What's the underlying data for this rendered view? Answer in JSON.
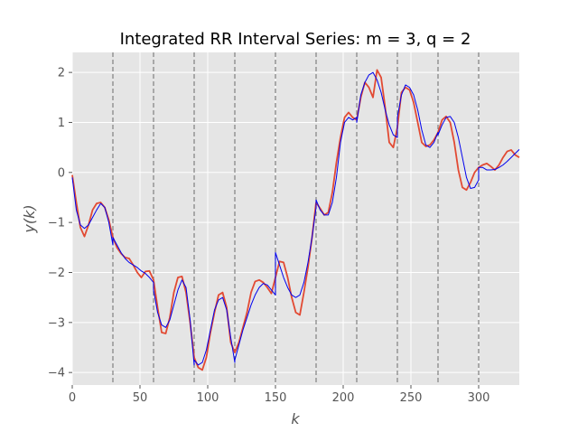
{
  "chart_data": {
    "type": "line",
    "title": "Integrated RR Interval Series: m = 3, q = 2",
    "xlabel": "k",
    "ylabel": "y(k)",
    "xlim": [
      0,
      330
    ],
    "ylim": [
      -4.25,
      2.4
    ],
    "x_ticks": [
      0,
      50,
      100,
      150,
      200,
      250,
      300
    ],
    "y_ticks": [
      -4,
      -3,
      -2,
      -1,
      0,
      1,
      2
    ],
    "segment_boundaries": [
      30,
      60,
      90,
      120,
      150,
      180,
      210,
      240,
      270,
      300
    ],
    "grid": true,
    "background": "#e5e5e5",
    "series": [
      {
        "color": "#e24a33",
        "x": [
          0,
          3,
          6,
          9,
          12,
          15,
          18,
          21,
          24,
          27,
          30,
          33,
          36,
          39,
          42,
          45,
          48,
          51,
          54,
          57,
          60,
          63,
          66,
          69,
          72,
          75,
          78,
          81,
          84,
          87,
          90,
          93,
          96,
          99,
          102,
          105,
          108,
          111,
          114,
          117,
          120,
          123,
          126,
          129,
          132,
          135,
          138,
          141,
          144,
          147,
          150,
          153,
          156,
          159,
          162,
          165,
          168,
          171,
          174,
          177,
          180,
          183,
          186,
          189,
          192,
          195,
          198,
          201,
          204,
          207,
          210,
          213,
          216,
          219,
          222,
          225,
          228,
          231,
          234,
          237,
          240,
          243,
          246,
          249,
          252,
          255,
          258,
          261,
          264,
          267,
          270,
          273,
          276,
          279,
          282,
          285,
          288,
          291,
          294,
          297,
          300,
          303,
          306,
          309,
          312,
          315,
          318,
          321,
          324,
          327,
          330
        ],
        "y": [
          -0.05,
          -0.6,
          -1.1,
          -1.28,
          -1.05,
          -0.75,
          -0.62,
          -0.6,
          -0.7,
          -0.95,
          -1.3,
          -1.5,
          -1.62,
          -1.7,
          -1.72,
          -1.85,
          -2.0,
          -2.1,
          -1.98,
          -1.97,
          -2.15,
          -2.7,
          -3.2,
          -3.22,
          -2.9,
          -2.4,
          -2.1,
          -2.08,
          -2.4,
          -3.0,
          -3.7,
          -3.9,
          -3.95,
          -3.7,
          -3.2,
          -2.8,
          -2.45,
          -2.4,
          -2.7,
          -3.4,
          -3.6,
          -3.4,
          -3.1,
          -2.8,
          -2.4,
          -2.18,
          -2.15,
          -2.2,
          -2.3,
          -2.42,
          -2.1,
          -1.78,
          -1.8,
          -2.1,
          -2.5,
          -2.8,
          -2.85,
          -2.4,
          -1.9,
          -1.3,
          -0.6,
          -0.72,
          -0.85,
          -0.8,
          -0.4,
          0.2,
          0.7,
          1.1,
          1.2,
          1.1,
          1.05,
          1.5,
          1.8,
          1.7,
          1.5,
          2.05,
          1.9,
          1.3,
          0.6,
          0.5,
          0.9,
          1.6,
          1.7,
          1.65,
          1.4,
          1.0,
          0.6,
          0.52,
          0.55,
          0.65,
          0.8,
          1.05,
          1.12,
          1.0,
          0.6,
          0.05,
          -0.3,
          -0.35,
          -0.2,
          0.0,
          0.1,
          0.15,
          0.18,
          0.12,
          0.05,
          0.15,
          0.3,
          0.42,
          0.45,
          0.35,
          0.3
        ]
      },
      {
        "color": "#0000ee",
        "x": [
          0,
          3,
          6,
          9,
          12,
          15,
          18,
          21,
          24,
          27,
          30,
          30,
          33,
          36,
          39,
          42,
          45,
          48,
          51,
          54,
          57,
          60,
          60,
          63,
          66,
          69,
          72,
          75,
          78,
          81,
          84,
          87,
          90,
          90,
          93,
          96,
          99,
          102,
          105,
          108,
          111,
          114,
          117,
          120,
          120,
          123,
          126,
          129,
          132,
          135,
          138,
          141,
          144,
          147,
          150,
          150,
          153,
          156,
          159,
          162,
          165,
          168,
          171,
          174,
          177,
          180,
          180,
          183,
          186,
          189,
          192,
          195,
          198,
          201,
          204,
          207,
          210,
          210,
          213,
          216,
          219,
          222,
          225,
          228,
          231,
          234,
          237,
          240,
          240,
          243,
          246,
          249,
          252,
          255,
          258,
          261,
          264,
          267,
          270,
          270,
          273,
          276,
          279,
          282,
          285,
          288,
          291,
          294,
          297,
          300,
          300,
          303,
          306,
          309,
          312,
          315,
          318,
          321,
          324,
          327,
          330
        ],
        "y": [
          -0.1,
          -0.75,
          -1.05,
          -1.12,
          -1.05,
          -0.9,
          -0.75,
          -0.62,
          -0.7,
          -1.0,
          -1.45,
          -1.3,
          -1.45,
          -1.6,
          -1.72,
          -1.8,
          -1.85,
          -1.9,
          -1.97,
          -2.02,
          -2.1,
          -2.2,
          -2.35,
          -2.8,
          -3.05,
          -3.1,
          -2.95,
          -2.65,
          -2.35,
          -2.15,
          -2.3,
          -2.95,
          -3.85,
          -3.75,
          -3.85,
          -3.8,
          -3.55,
          -3.15,
          -2.75,
          -2.55,
          -2.5,
          -2.75,
          -3.3,
          -3.8,
          -3.75,
          -3.45,
          -3.15,
          -2.9,
          -2.65,
          -2.45,
          -2.3,
          -2.22,
          -2.25,
          -2.35,
          -2.45,
          -1.6,
          -1.85,
          -2.1,
          -2.3,
          -2.45,
          -2.5,
          -2.45,
          -2.2,
          -1.8,
          -1.3,
          -0.7,
          -0.55,
          -0.75,
          -0.85,
          -0.85,
          -0.6,
          -0.1,
          0.6,
          1.0,
          1.1,
          1.05,
          1.1,
          1.0,
          1.55,
          1.8,
          1.95,
          2.0,
          1.85,
          1.6,
          1.25,
          0.95,
          0.75,
          0.7,
          1.1,
          1.55,
          1.75,
          1.7,
          1.55,
          1.25,
          0.85,
          0.55,
          0.5,
          0.6,
          0.8,
          0.75,
          0.95,
          1.1,
          1.12,
          1.0,
          0.7,
          0.3,
          -0.1,
          -0.32,
          -0.3,
          -0.15,
          0.1,
          0.1,
          0.05,
          0.05,
          0.06,
          0.1,
          0.15,
          0.22,
          0.3,
          0.38,
          0.46
        ]
      }
    ]
  }
}
